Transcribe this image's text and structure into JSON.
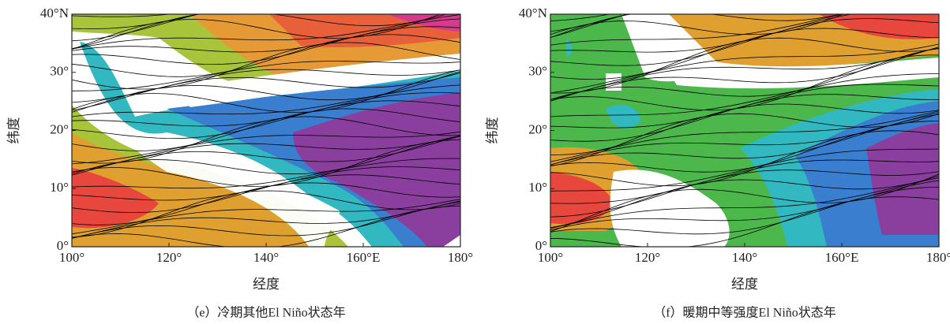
{
  "panels": [
    {
      "x_tick_labels": [
        "100°",
        "120°",
        "140°",
        "160°E",
        "180°"
      ],
      "y_tick_labels": [
        "0°",
        "10°",
        "20°",
        "30°",
        "40°N"
      ],
      "x_axis_label": "经度",
      "y_axis_label": "纬度",
      "caption": "（e）冷期其他El Niño状态年"
    },
    {
      "x_tick_labels": [
        "100°",
        "120°",
        "140°",
        "160°E",
        "180°"
      ],
      "y_tick_labels": [
        "0°",
        "10°",
        "20°",
        "30°",
        "40°N"
      ],
      "x_axis_label": "经度",
      "y_axis_label": "纬度",
      "caption": "（f）暖期中等强度El Niño状态年"
    }
  ]
}
